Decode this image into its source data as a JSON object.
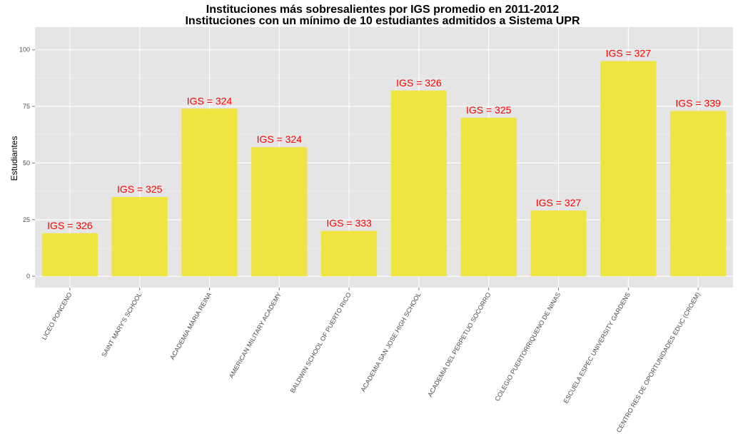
{
  "chart_data": {
    "type": "bar",
    "title": "Instituciones más sobresalientes por IGS promedio en 2011-2012",
    "subtitle": "Instituciones con un mínimo de 10 estudiantes admitidos a Sistema UPR",
    "xlabel": "",
    "ylabel": "Estudiantes",
    "categories": [
      "LICEO PONCENO",
      "SAINT MARY'S SCHOOL",
      "ACADEMIA MARIA REINA",
      "AMERICAN MILITARY ACADEMY",
      "BALDWIN SCHOOL OF PUERTO RICO",
      "ACADEMIA SAN JOSE HIGH SCHOOL",
      "ACADEMIA DEL PERPETUO SOCORRO",
      "COLEGIO PUERTORRIQUENO DE NINAS",
      "ESCUELA ESPEC UNIVERSITY GARDENS",
      "CENTRO RES DE OPORTUNIDADES EDUC (CROEM)"
    ],
    "values": [
      19,
      35,
      74,
      57,
      20,
      82,
      70,
      29,
      95,
      73
    ],
    "data_labels": [
      "IGS = 326",
      "IGS = 325",
      "IGS = 324",
      "IGS = 324",
      "IGS = 333",
      "IGS = 326",
      "IGS = 325",
      "IGS = 327",
      "IGS = 327",
      "IGS = 339"
    ],
    "ylim": [
      -5,
      110
    ],
    "yticks": [
      0,
      25,
      50,
      75,
      100
    ],
    "ytick_labels": [
      "0",
      "25",
      "50",
      "75",
      "100"
    ],
    "grid": true,
    "legend": "none",
    "colors": {
      "bar": "#f0e442",
      "panel_background": "#e5e5e5",
      "grid_major": "#ffffff",
      "grid_minor": "#f2f2f2",
      "data_label": "#ff0000",
      "tick_text": "#4d4d4d"
    }
  }
}
